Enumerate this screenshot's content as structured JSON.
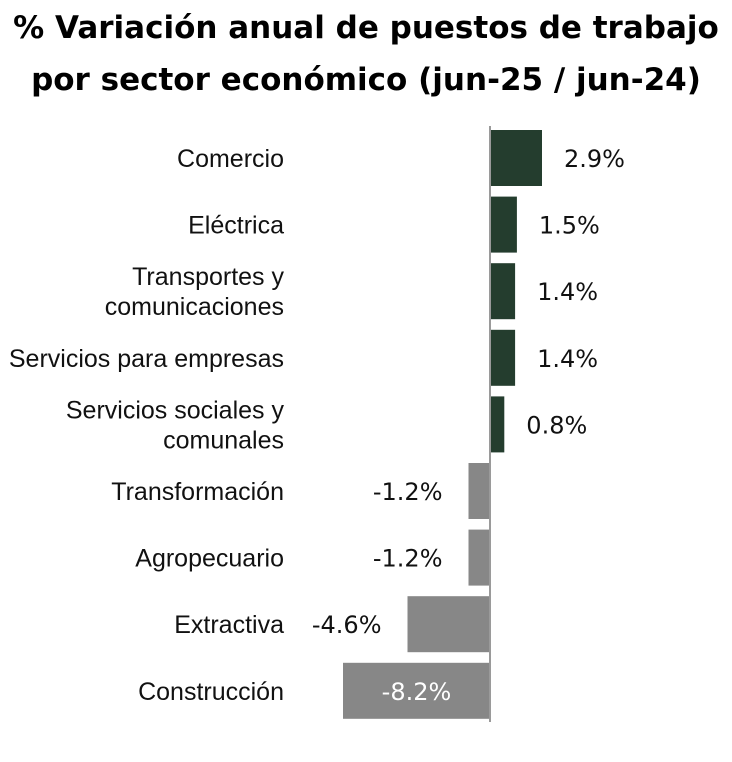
{
  "title_line1": "% Variación anual de puestos de trabajo",
  "title_line2": "por sector económico (jun-25 / jun-24)",
  "colors": {
    "positive": "#243d2e",
    "negative": "#878787",
    "axis": "#9a9a9a"
  },
  "chart_data": {
    "type": "bar",
    "orientation": "horizontal",
    "title": "% Variación anual de puestos de trabajo por sector económico (jun-25 / jun-24)",
    "xlabel": "",
    "ylabel": "",
    "unit": "%",
    "xlim": [
      -8.2,
      2.9
    ],
    "grid": false,
    "categories": [
      [
        "Comercio"
      ],
      [
        "Eléctrica"
      ],
      [
        "Transportes y",
        "comunicaciones"
      ],
      [
        "Servicios para empresas"
      ],
      [
        "Servicios sociales y",
        "comunales"
      ],
      [
        "Transformación"
      ],
      [
        "Agropecuario"
      ],
      [
        "Extractiva"
      ],
      [
        "Construcción"
      ]
    ],
    "values": [
      2.9,
      1.5,
      1.4,
      1.4,
      0.8,
      -1.2,
      -1.2,
      -4.6,
      -8.2
    ],
    "labels": [
      "2.9%",
      "1.5%",
      "1.4%",
      "1.4%",
      "0.8%",
      "-1.2%",
      "-1.2%",
      "-4.6%",
      "-8.2%"
    ]
  }
}
